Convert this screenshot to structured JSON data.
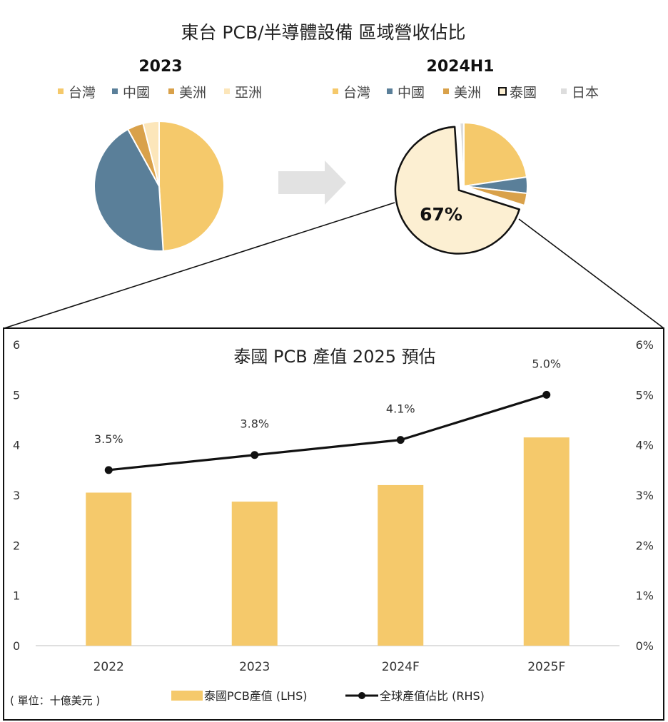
{
  "title": "東台 PCB/半導體設備 區域營收佔比",
  "colors": {
    "taiwan": "#F5C96B",
    "china": "#5A7F99",
    "americas": "#D9A14A",
    "asia": "#FCE6BA",
    "thailand": "#FCEFD2",
    "japan": "#DDDDDD",
    "arrow": "#E2E2E2",
    "line": "#111111",
    "axis": "#BFBFBF"
  },
  "chart_data": [
    {
      "type": "pie",
      "title": "2023",
      "categories": [
        "台灣",
        "中國",
        "美洲",
        "亞洲"
      ],
      "legend": [
        "台灣",
        "中國",
        "美洲",
        "亞洲"
      ],
      "values": [
        49,
        43,
        4,
        4
      ],
      "unit": "%"
    },
    {
      "type": "pie",
      "title": "2024H1",
      "categories": [
        "台灣",
        "中國",
        "美洲",
        "泰國",
        "日本"
      ],
      "legend": [
        "台灣",
        "中國",
        "美洲",
        "泰國",
        "日本"
      ],
      "values": [
        22,
        4,
        3,
        67,
        1
      ],
      "unit": "%",
      "exploded": "泰國",
      "annotations": [
        {
          "category": "泰國",
          "label": "67%"
        }
      ]
    },
    {
      "type": "bar",
      "title": "泰國 PCB 產值 2025 預估",
      "categories": [
        "2022",
        "2023",
        "2024F",
        "2025F"
      ],
      "unit_note": "( 單位：十億美元 )",
      "ylim": [
        0,
        6
      ],
      "yticks": [
        "0",
        "1",
        "2",
        "3",
        "4",
        "5",
        "6"
      ],
      "y2lim": [
        0,
        6
      ],
      "y2ticks": [
        "0%",
        "1%",
        "2%",
        "3%",
        "4%",
        "5%",
        "6%"
      ],
      "series": [
        {
          "name": "泰國PCB產值 (LHS)",
          "type": "bar",
          "axis": "left",
          "values": [
            3.05,
            2.87,
            3.2,
            4.15
          ]
        },
        {
          "name": "全球產值佔比 (RHS)",
          "type": "line",
          "axis": "right",
          "values": [
            3.5,
            3.8,
            4.1,
            5.0
          ],
          "labels": [
            "3.5%",
            "3.8%",
            "4.1%",
            "5.0%"
          ]
        }
      ],
      "legend_position": "bottom",
      "grid": false
    }
  ]
}
